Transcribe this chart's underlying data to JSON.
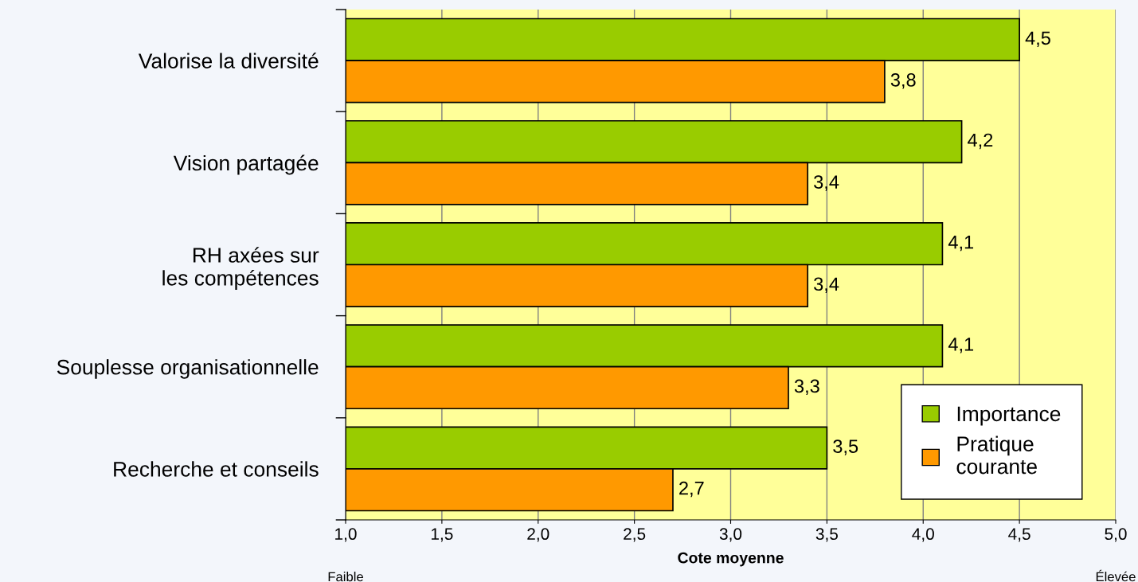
{
  "chart_data": {
    "type": "bar",
    "orientation": "horizontal",
    "xlabel": "Cote moyenne",
    "categories": [
      "Valorise la diversité",
      "Vision partagée",
      "RH axées sur\nles compétences",
      "Souplesse organisationnelle",
      "Recherche et conseils"
    ],
    "series": [
      {
        "name": "Importance",
        "color": "#99cc00",
        "values": [
          4.5,
          4.2,
          4.1,
          4.1,
          3.5
        ],
        "value_labels": [
          "4,5",
          "4,2",
          "4,1",
          "4,1",
          "3,5"
        ]
      },
      {
        "name": "Pratique\ncourante",
        "color": "#ff9900",
        "values": [
          3.8,
          3.4,
          3.4,
          3.3,
          2.7
        ],
        "value_labels": [
          "3,8",
          "3,4",
          "3,4",
          "3,3",
          "2,7"
        ]
      }
    ],
    "xlim": [
      1.0,
      5.0
    ],
    "xticks": [
      {
        "value": 1.0,
        "label": "1,0"
      },
      {
        "value": 1.5,
        "label": "1,5"
      },
      {
        "value": 2.0,
        "label": "2,0"
      },
      {
        "value": 2.5,
        "label": "2,5"
      },
      {
        "value": 3.0,
        "label": "3,0"
      },
      {
        "value": 3.5,
        "label": "3,5"
      },
      {
        "value": 4.0,
        "label": "4,0"
      },
      {
        "value": 4.5,
        "label": "4,5"
      },
      {
        "value": 5.0,
        "label": "5,0"
      }
    ],
    "grid": "x",
    "legend": "bottom right",
    "annotations": [
      "Faible",
      "Élevée"
    ]
  }
}
